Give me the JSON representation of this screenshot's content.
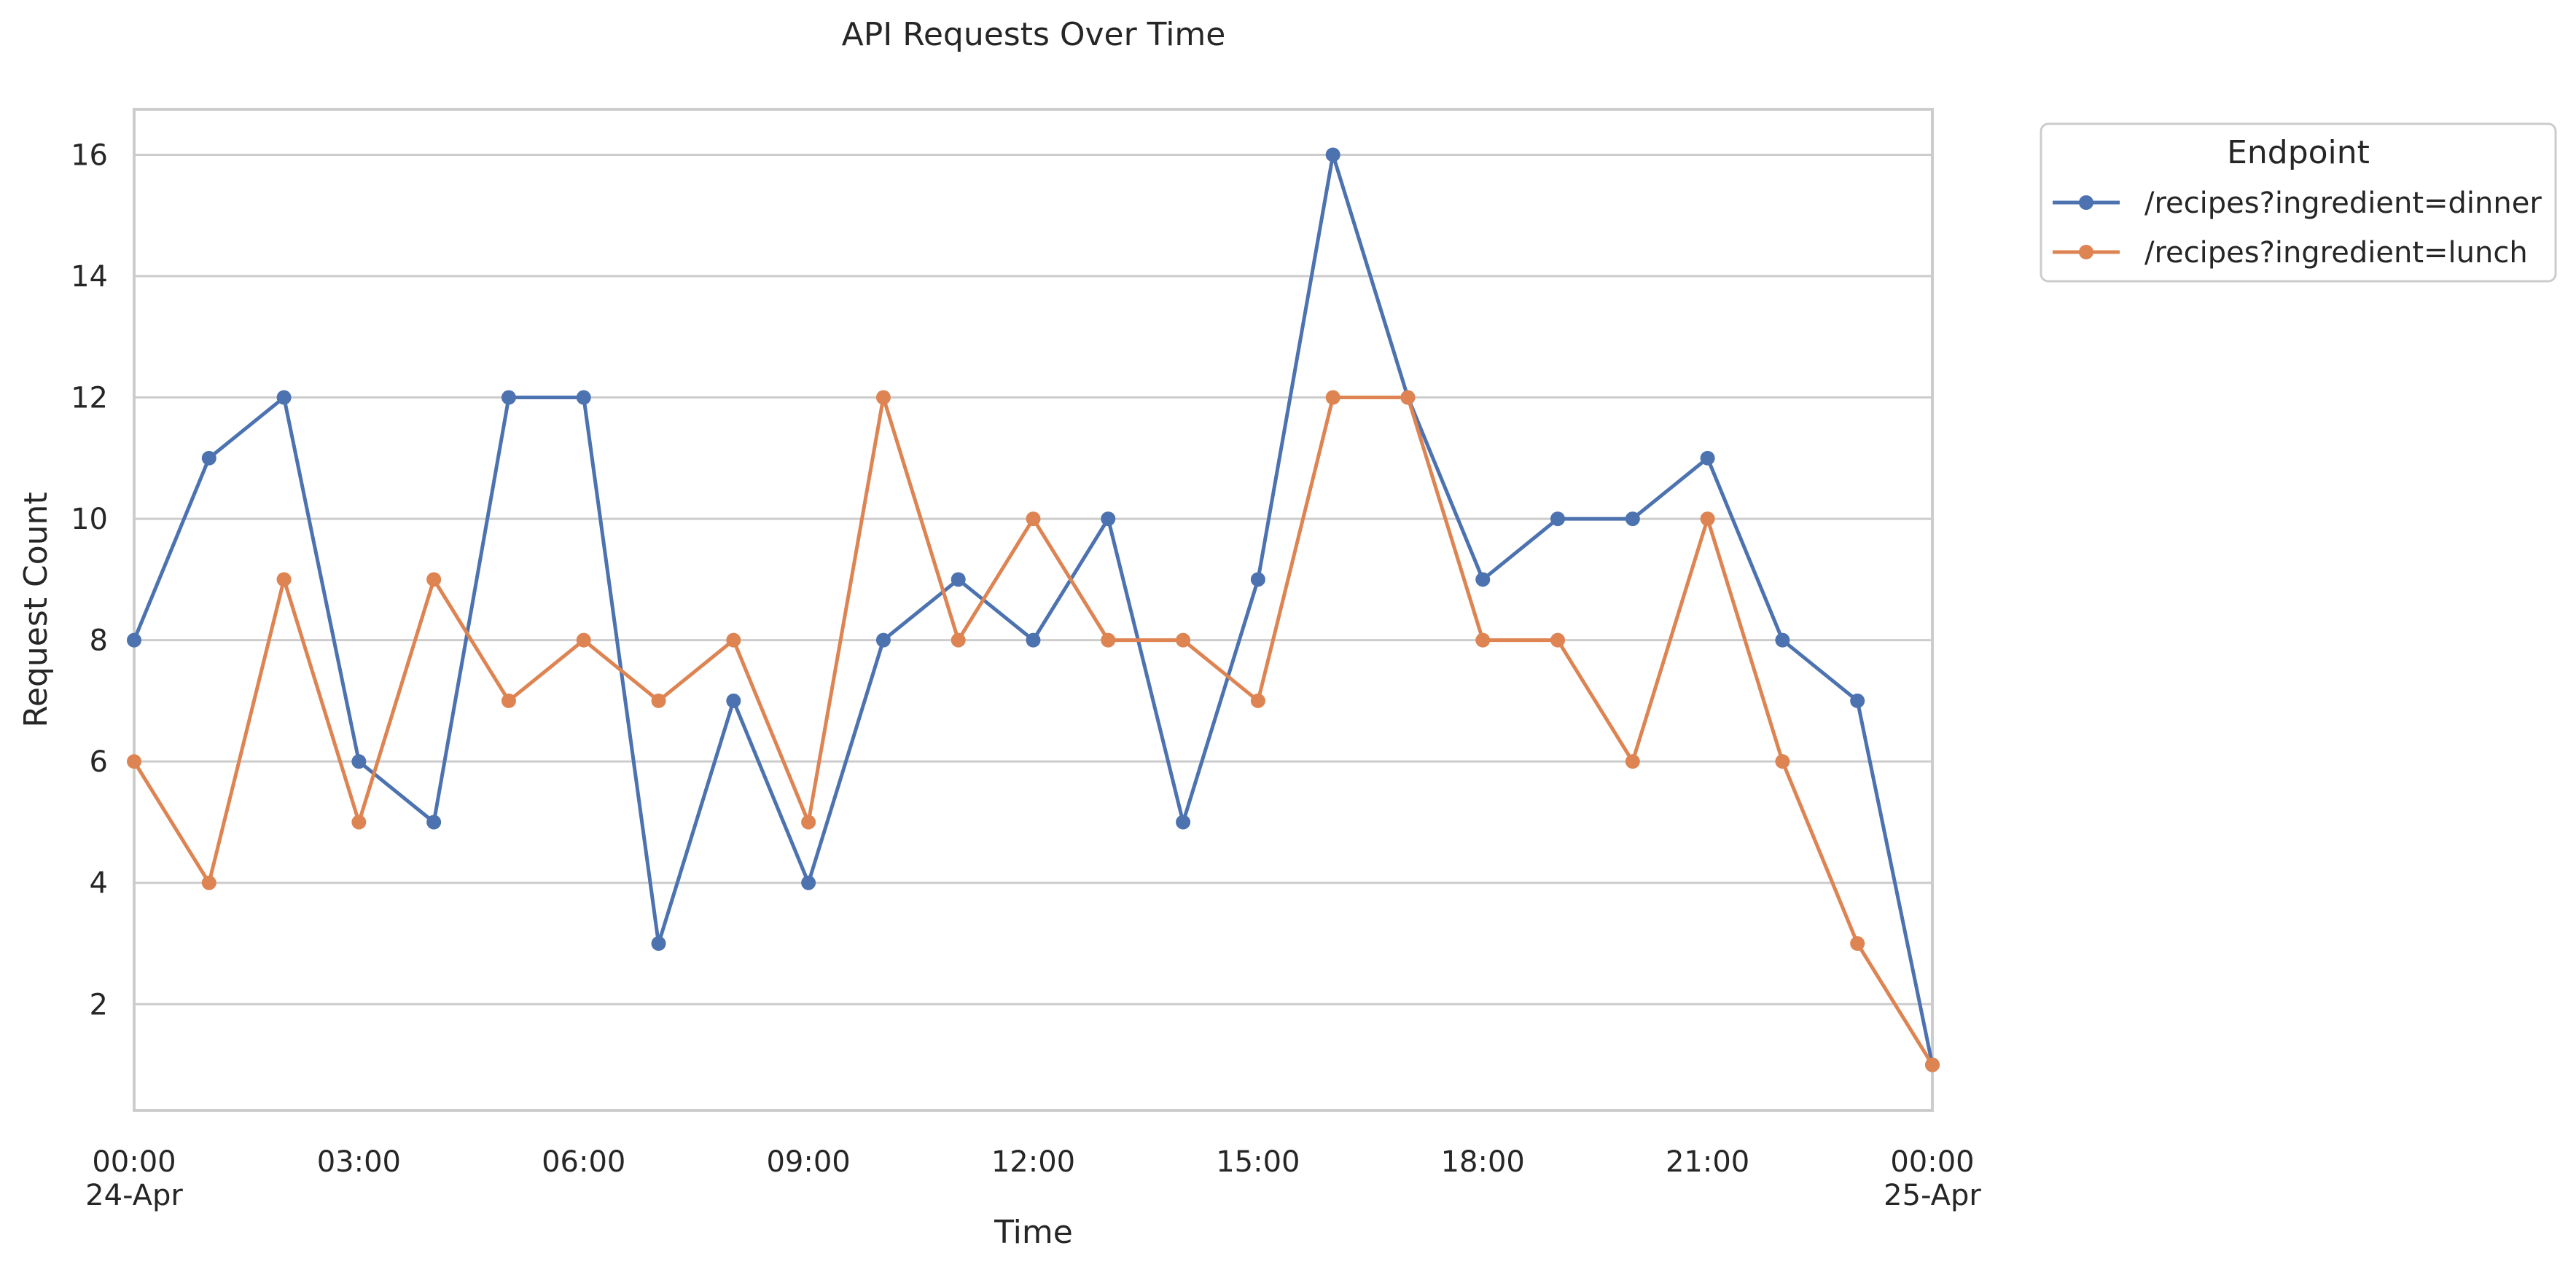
{
  "chart_data": {
    "type": "line",
    "title": "API Requests Over Time",
    "xlabel": "Time",
    "ylabel": "Request Count",
    "x": [
      "2024-04-24 00:00",
      "2024-04-24 01:00",
      "2024-04-24 02:00",
      "2024-04-24 03:00",
      "2024-04-24 04:00",
      "2024-04-24 05:00",
      "2024-04-24 06:00",
      "2024-04-24 07:00",
      "2024-04-24 08:00",
      "2024-04-24 09:00",
      "2024-04-24 10:00",
      "2024-04-24 11:00",
      "2024-04-24 12:00",
      "2024-04-24 13:00",
      "2024-04-24 14:00",
      "2024-04-24 15:00",
      "2024-04-24 16:00",
      "2024-04-24 17:00",
      "2024-04-24 18:00",
      "2024-04-24 19:00",
      "2024-04-24 20:00",
      "2024-04-24 21:00",
      "2024-04-24 22:00",
      "2024-04-24 23:00",
      "2024-04-25 00:00"
    ],
    "xlim": [
      "2024-04-24 00:00",
      "2024-04-25 00:00"
    ],
    "ylim": [
      0.25,
      16.75
    ],
    "series": [
      {
        "name": "/recipes?ingredient=dinner",
        "color": "#4c72b0",
        "values": [
          8,
          11,
          12,
          6,
          5,
          12,
          12,
          3,
          7,
          4,
          8,
          9,
          8,
          10,
          5,
          9,
          16,
          12,
          9,
          10,
          10,
          11,
          8,
          7,
          1
        ]
      },
      {
        "name": "/recipes?ingredient=lunch",
        "color": "#dd8452",
        "values": [
          6,
          4,
          9,
          5,
          9,
          7,
          8,
          7,
          8,
          5,
          12,
          8,
          10,
          8,
          8,
          7,
          12,
          12,
          8,
          8,
          6,
          10,
          6,
          3,
          1
        ]
      }
    ],
    "y_ticks": [
      2,
      4,
      6,
      8,
      10,
      12,
      14,
      16
    ],
    "x_ticks": [
      {
        "x": "2024-04-24 00:00",
        "line1": "00:00",
        "line2": "24-Apr"
      },
      {
        "x": "2024-04-24 03:00",
        "line1": "03:00",
        "line2": ""
      },
      {
        "x": "2024-04-24 06:00",
        "line1": "06:00",
        "line2": ""
      },
      {
        "x": "2024-04-24 09:00",
        "line1": "09:00",
        "line2": ""
      },
      {
        "x": "2024-04-24 12:00",
        "line1": "12:00",
        "line2": ""
      },
      {
        "x": "2024-04-24 15:00",
        "line1": "15:00",
        "line2": ""
      },
      {
        "x": "2024-04-24 18:00",
        "line1": "18:00",
        "line2": ""
      },
      {
        "x": "2024-04-24 21:00",
        "line1": "21:00",
        "line2": ""
      },
      {
        "x": "2024-04-25 00:00",
        "line1": "00:00",
        "line2": "25-Apr"
      }
    ],
    "grid": "horizontal",
    "legend": {
      "title": "Endpoint",
      "placement": "outside-top-right"
    }
  }
}
